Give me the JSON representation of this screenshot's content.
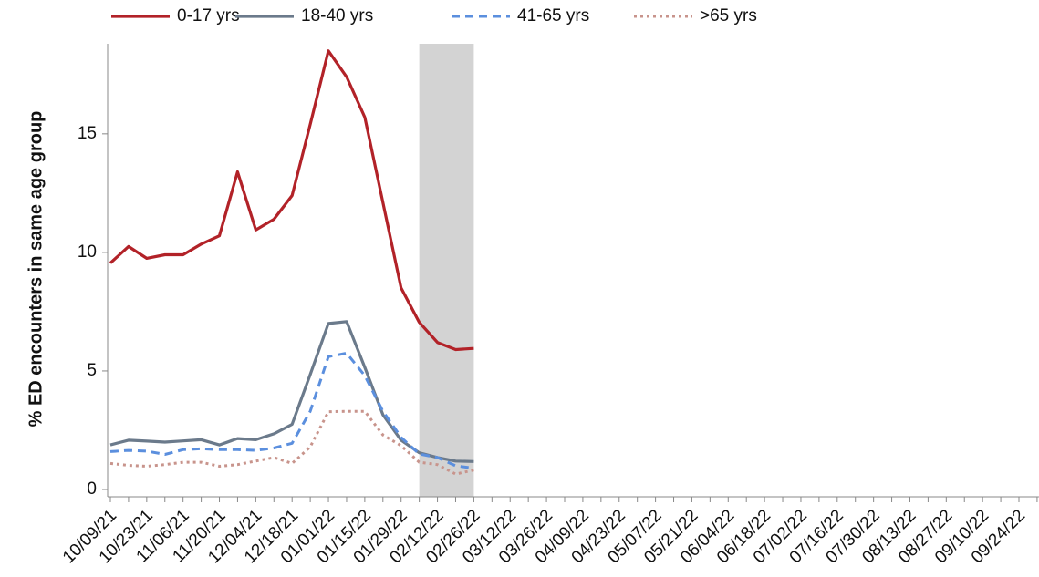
{
  "chart_data": {
    "type": "line",
    "y_label": "% ED encounters in same age group",
    "categories": [
      "10/09/21",
      null,
      "10/23/21",
      null,
      "11/06/21",
      null,
      "11/20/21",
      null,
      "12/04/21",
      null,
      "12/18/21",
      null,
      "01/01/22",
      null,
      "01/15/22",
      null,
      "01/29/22",
      null,
      "02/12/22",
      null,
      "02/26/22",
      null,
      "03/12/22",
      null,
      "03/26/22",
      null,
      "04/09/22",
      null,
      "04/23/22",
      null,
      "05/07/22",
      null,
      "05/21/22",
      null,
      "06/04/22",
      null,
      "06/18/22",
      null,
      "07/02/22",
      null,
      "07/16/22",
      null,
      "07/30/22",
      null,
      "08/13/22",
      null,
      "08/27/22",
      null,
      "09/10/22",
      null,
      "09/24/22",
      null
    ],
    "series": [
      {
        "name": "0-17 yrs",
        "color": "#b22228",
        "dash": "solid",
        "values": [
          9.55,
          10.25,
          9.75,
          9.9,
          9.9,
          10.35,
          10.7,
          13.4,
          10.95,
          11.4,
          12.4,
          15.4,
          18.5,
          17.4,
          15.7,
          12.1,
          8.5,
          7.05,
          6.2,
          5.9,
          5.95,
          null,
          null,
          null,
          null,
          null,
          null,
          null,
          null,
          null,
          null,
          null,
          null,
          null,
          null,
          null,
          null,
          null,
          null,
          null,
          null,
          null,
          null,
          null,
          null,
          null,
          null,
          null,
          null,
          null,
          null,
          null
        ]
      },
      {
        "name": "18-40 yrs",
        "color": "#6b7a8b",
        "dash": "solid",
        "values": [
          1.88,
          2.08,
          2.04,
          2.0,
          2.05,
          2.1,
          1.88,
          2.15,
          2.1,
          2.35,
          2.75,
          4.85,
          7.0,
          7.08,
          5.15,
          3.15,
          2.08,
          1.55,
          1.35,
          1.2,
          1.18,
          null,
          null,
          null,
          null,
          null,
          null,
          null,
          null,
          null,
          null,
          null,
          null,
          null,
          null,
          null,
          null,
          null,
          null,
          null,
          null,
          null,
          null,
          null,
          null,
          null,
          null,
          null,
          null,
          null,
          null,
          null
        ]
      },
      {
        "name": "41-65 yrs",
        "color": "#5b8fde",
        "dash": "dashed",
        "values": [
          1.6,
          1.65,
          1.62,
          1.48,
          1.68,
          1.72,
          1.68,
          1.68,
          1.65,
          1.75,
          1.95,
          3.3,
          5.6,
          5.75,
          4.8,
          3.3,
          2.2,
          1.5,
          1.35,
          1.0,
          0.9,
          null,
          null,
          null,
          null,
          null,
          null,
          null,
          null,
          null,
          null,
          null,
          null,
          null,
          null,
          null,
          null,
          null,
          null,
          null,
          null,
          null,
          null,
          null,
          null,
          null,
          null,
          null,
          null,
          null,
          null,
          null
        ]
      },
      {
        "name": ">65 yrs",
        "color": "#c8948c",
        "dash": "dotted",
        "values": [
          1.1,
          1.02,
          0.98,
          1.05,
          1.15,
          1.15,
          0.98,
          1.05,
          1.2,
          1.35,
          1.1,
          1.8,
          3.28,
          3.3,
          3.3,
          2.3,
          1.85,
          1.15,
          1.05,
          0.65,
          0.82,
          null,
          null,
          null,
          null,
          null,
          null,
          null,
          null,
          null,
          null,
          null,
          null,
          null,
          null,
          null,
          null,
          null,
          null,
          null,
          null,
          null,
          null,
          null,
          null,
          null,
          null,
          null,
          null,
          null,
          null,
          null
        ]
      }
    ],
    "ylim": [
      0,
      18.8
    ],
    "yticks": [
      0,
      5,
      10,
      15
    ],
    "grid": false
  }
}
